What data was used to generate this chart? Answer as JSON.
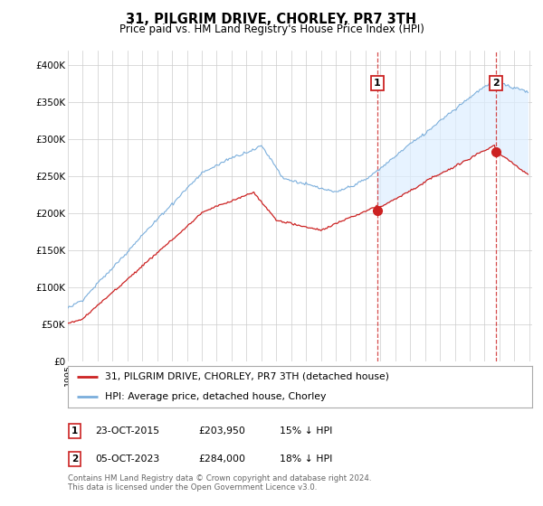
{
  "title": "31, PILGRIM DRIVE, CHORLEY, PR7 3TH",
  "subtitle": "Price paid vs. HM Land Registry's House Price Index (HPI)",
  "ylim": [
    0,
    420000
  ],
  "yticks": [
    0,
    50000,
    100000,
    150000,
    200000,
    250000,
    300000,
    350000,
    400000
  ],
  "ytick_labels": [
    "£0",
    "£50K",
    "£100K",
    "£150K",
    "£200K",
    "£250K",
    "£300K",
    "£350K",
    "£400K"
  ],
  "x_start_year": 1995,
  "x_end_year": 2026,
  "hpi_color": "#7aaedc",
  "property_color": "#cc2222",
  "vline_color": "#cc2222",
  "fill_color": "#ddeeff",
  "marker1_x": 2015.79,
  "marker1_value": 203950,
  "marker2_x": 2023.75,
  "marker2_value": 284000,
  "legend_property": "31, PILGRIM DRIVE, CHORLEY, PR7 3TH (detached house)",
  "legend_hpi": "HPI: Average price, detached house, Chorley",
  "table_row1": [
    "1",
    "23-OCT-2015",
    "£203,950",
    "15% ↓ HPI"
  ],
  "table_row2": [
    "2",
    "05-OCT-2023",
    "£284,000",
    "18% ↓ HPI"
  ],
  "footnote": "Contains HM Land Registry data © Crown copyright and database right 2024.\nThis data is licensed under the Open Government Licence v3.0.",
  "background_color": "#ffffff",
  "grid_color": "#cccccc"
}
